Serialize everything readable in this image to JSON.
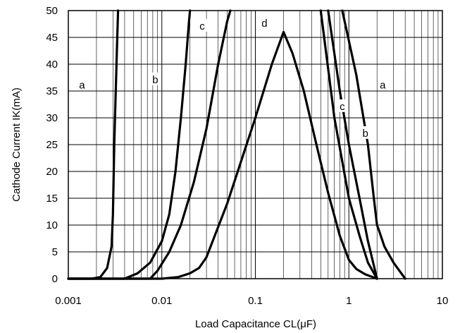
{
  "chart_data": {
    "type": "line",
    "xlabel": "Load Capacitance CL(μF)",
    "ylabel": "Cathode Current IK(mA)",
    "xscale": "log",
    "xlim": [
      0.001,
      10
    ],
    "ylim": [
      0,
      50
    ],
    "grid": true,
    "x_ticks": [
      "0.001",
      "0.01",
      "0.1",
      "1",
      "10"
    ],
    "x_tick_values": [
      0.001,
      0.01,
      0.1,
      1,
      10
    ],
    "y_ticks": [
      "0",
      "5",
      "10",
      "15",
      "20",
      "25",
      "30",
      "35",
      "40",
      "45",
      "50"
    ],
    "y_tick_values": [
      0,
      5,
      10,
      15,
      20,
      25,
      30,
      35,
      40,
      45,
      50
    ],
    "series": [
      {
        "name": "a",
        "x": [
          0.001,
          0.0018,
          0.0022,
          0.0026,
          0.0029,
          0.003,
          0.0031,
          0.0033,
          0.0034
        ],
        "y": [
          0,
          0,
          0.3,
          2,
          6,
          12,
          25,
          42,
          50
        ]
      },
      {
        "name": "b",
        "x": [
          0.001,
          0.004,
          0.0055,
          0.0075,
          0.01,
          0.012,
          0.014,
          0.016,
          0.018,
          0.0195,
          0.02
        ],
        "y": [
          0,
          0,
          1,
          3,
          7,
          12,
          20,
          30,
          40,
          48,
          50
        ]
      },
      {
        "name": "c",
        "x": [
          0.001,
          0.0075,
          0.009,
          0.012,
          0.016,
          0.022,
          0.03,
          0.04,
          0.05,
          0.054
        ],
        "y": [
          0,
          0,
          1.5,
          5,
          10,
          18,
          28,
          40,
          48,
          50
        ]
      },
      {
        "name": "d",
        "x": [
          0.001,
          0.01,
          0.015,
          0.02,
          0.025,
          0.03,
          0.05,
          0.1,
          0.15,
          0.2,
          0.25,
          0.33,
          0.45,
          0.6,
          0.8,
          1.0,
          1.2,
          1.5,
          2.0
        ],
        "y": [
          0,
          0,
          0.3,
          1,
          2,
          4,
          14,
          30,
          40,
          46,
          42,
          35,
          25,
          16,
          8,
          3.5,
          1.8,
          0.8,
          0
        ]
      },
      {
        "name": "c",
        "x": [
          0.5,
          0.7,
          1.0,
          1.3,
          1.6,
          2.0
        ],
        "y": [
          50,
          30,
          15,
          8,
          3,
          0
        ]
      },
      {
        "name": "b",
        "x": [
          0.6,
          0.8,
          1.0,
          1.3,
          1.6,
          2.0
        ],
        "y": [
          50,
          35,
          25,
          15,
          7,
          0
        ]
      },
      {
        "name": "a",
        "x": [
          0.85,
          1.2,
          1.6,
          1.85,
          2.0,
          2.1,
          2.4,
          3.0,
          4.0
        ],
        "y": [
          50,
          38,
          25,
          15,
          10,
          9,
          6,
          3,
          0
        ]
      }
    ]
  },
  "curve_labels": [
    {
      "text": "a",
      "x": 0.0014,
      "y": 36
    },
    {
      "text": "b",
      "x": 0.0085,
      "y": 37
    },
    {
      "text": "c",
      "x": 0.027,
      "y": 47
    },
    {
      "text": "d",
      "x": 0.125,
      "y": 47.5
    },
    {
      "text": "c",
      "x": 0.85,
      "y": 32
    },
    {
      "text": "b",
      "x": 1.5,
      "y": 27
    },
    {
      "text": "a",
      "x": 2.3,
      "y": 36
    }
  ]
}
